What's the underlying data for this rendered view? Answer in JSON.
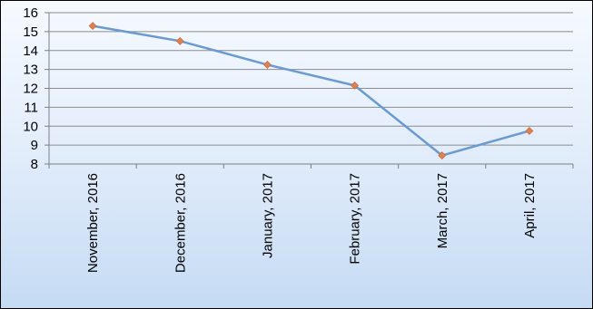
{
  "chart_data": {
    "type": "line",
    "title": "",
    "xlabel": "",
    "ylabel": "",
    "categories": [
      "November, 2016",
      "December, 2016",
      "January, 2017",
      "February, 2017",
      "March, 2017",
      "April, 2017"
    ],
    "series": [
      {
        "values": [
          15.3,
          14.5,
          13.25,
          12.15,
          8.45,
          9.75
        ]
      }
    ],
    "ylim": [
      8,
      16
    ],
    "yticks": [
      8,
      9,
      10,
      11,
      12,
      13,
      14,
      15,
      16
    ],
    "grid": true,
    "legend": "none",
    "colors": {
      "line": "#6a9ad0",
      "marker": "#e07f4f",
      "grid": "#8c8c8c",
      "axis": "#7f7f7f"
    }
  }
}
